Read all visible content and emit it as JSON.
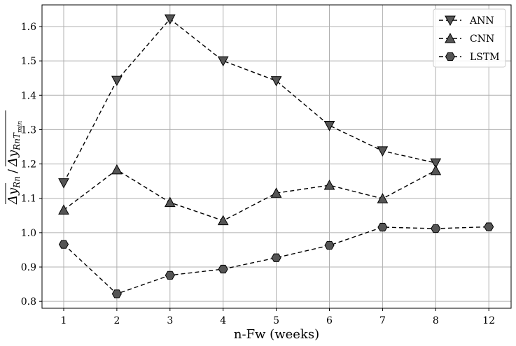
{
  "chart_data": {
    "type": "line",
    "categories": [
      "1",
      "2",
      "3",
      "4",
      "5",
      "6",
      "7",
      "8",
      "12"
    ],
    "series": [
      {
        "name": "ANN",
        "marker": "triangle-down",
        "values": [
          1.145,
          1.443,
          1.622,
          1.5,
          1.442,
          1.312,
          1.238,
          1.203,
          null
        ]
      },
      {
        "name": "CNN",
        "marker": "triangle-up",
        "values": [
          1.066,
          1.183,
          1.088,
          1.035,
          1.115,
          1.138,
          1.099,
          1.181,
          null
        ]
      },
      {
        "name": "LSTM",
        "marker": "hexagon",
        "values": [
          0.966,
          0.822,
          0.876,
          0.894,
          0.927,
          0.963,
          1.016,
          1.012,
          1.017
        ]
      }
    ],
    "xlabel": "n-Fw (weeks)",
    "ylabel": "ΔyRn / ΔyRnTmin",
    "ylim": [
      0.78,
      1.663
    ],
    "yticks": [
      "0.8",
      "0.9",
      "1.0",
      "1.1",
      "1.2",
      "1.3",
      "1.4",
      "1.5",
      "1.6"
    ],
    "grid": true,
    "legend_position": "top-right",
    "colors": {
      "marker_fill": "#555555",
      "line": "#000000",
      "grid": "#b0b0b0"
    }
  }
}
